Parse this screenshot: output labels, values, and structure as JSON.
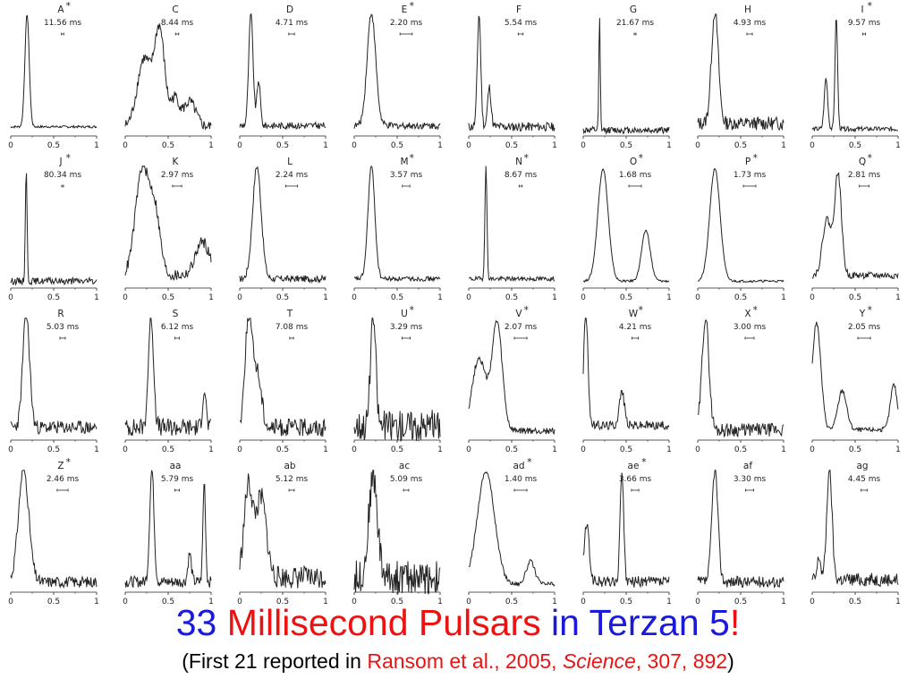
{
  "page": {
    "title_parts": [
      {
        "text": "33 ",
        "color": "#1a1adc"
      },
      {
        "text": "Millisecond Pulsars",
        "color": "#ee1111"
      },
      {
        "text": " in ",
        "color": "#1a1adc"
      },
      {
        "text": "Terzan 5",
        "color": "#1a1adc"
      },
      {
        "text": "!",
        "color": "#ee1111"
      }
    ],
    "subtitle_parts": [
      {
        "text": "(First 21 reported in ",
        "color": "#000000",
        "italic": false
      },
      {
        "text": "Ransom et al., 2005, ",
        "color": "#ee1111",
        "italic": false
      },
      {
        "text": "Science",
        "color": "#ee1111",
        "italic": true
      },
      {
        "text": ", 307, 892",
        "color": "#ee1111",
        "italic": false
      },
      {
        "text": ")",
        "color": "#000000",
        "italic": false
      }
    ]
  },
  "chart_data": {
    "type": "line",
    "xlim": [
      0,
      1
    ],
    "xticks": [
      "0",
      "0.5",
      "1"
    ],
    "line_color": "#222222",
    "panels": [
      {
        "label": "A",
        "star": true,
        "period": "11.56 ms",
        "peaks": [
          [
            0.19,
            1.0,
            0.025
          ]
        ],
        "noise": 0.01,
        "base": 0.05
      },
      {
        "label": "C",
        "star": false,
        "period": "8.44 ms",
        "peaks": [
          [
            0.22,
            0.6,
            0.08
          ],
          [
            0.4,
            0.85,
            0.06
          ],
          [
            0.58,
            0.25,
            0.05
          ],
          [
            0.75,
            0.22,
            0.07
          ]
        ],
        "noise": 0.05,
        "base": 0.05
      },
      {
        "label": "D",
        "star": false,
        "period": "4.71 ms",
        "peaks": [
          [
            0.13,
            1.0,
            0.025
          ],
          [
            0.22,
            0.4,
            0.02
          ]
        ],
        "noise": 0.03,
        "base": 0.06
      },
      {
        "label": "E",
        "star": true,
        "period": "2.20 ms",
        "peaks": [
          [
            0.2,
            1.0,
            0.05
          ]
        ],
        "noise": 0.03,
        "base": 0.06
      },
      {
        "label": "F",
        "star": false,
        "period": "5.54 ms",
        "peaks": [
          [
            0.12,
            1.0,
            0.02
          ],
          [
            0.24,
            0.35,
            0.02
          ]
        ],
        "noise": 0.04,
        "base": 0.05
      },
      {
        "label": "G",
        "star": false,
        "period": "21.67 ms",
        "peaks": [
          [
            0.19,
            1.0,
            0.008
          ]
        ],
        "noise": 0.03,
        "base": 0.02
      },
      {
        "label": "H",
        "star": false,
        "period": "4.93 ms",
        "peaks": [
          [
            0.2,
            1.0,
            0.04
          ]
        ],
        "noise": 0.06,
        "base": 0.08
      },
      {
        "label": "I",
        "star": true,
        "period": "9.57 ms",
        "peaks": [
          [
            0.16,
            0.45,
            0.02
          ],
          [
            0.28,
            1.0,
            0.015
          ]
        ],
        "noise": 0.02,
        "base": 0.03
      },
      {
        "label": "J",
        "star": true,
        "period": "80.34 ms",
        "peaks": [
          [
            0.18,
            1.0,
            0.01
          ]
        ],
        "noise": 0.03,
        "base": 0.03
      },
      {
        "label": "K",
        "star": false,
        "period": "2.97 ms",
        "peaks": [
          [
            0.2,
            0.95,
            0.08
          ],
          [
            0.35,
            0.5,
            0.06
          ],
          [
            0.9,
            0.3,
            0.08
          ]
        ],
        "noise": 0.05,
        "base": 0.08
      },
      {
        "label": "L",
        "star": false,
        "period": "2.24 ms",
        "peaks": [
          [
            0.2,
            1.0,
            0.05
          ]
        ],
        "noise": 0.03,
        "base": 0.05
      },
      {
        "label": "M",
        "star": true,
        "period": "3.57 ms",
        "peaks": [
          [
            0.2,
            1.0,
            0.04
          ]
        ],
        "noise": 0.02,
        "base": 0.05
      },
      {
        "label": "N",
        "star": true,
        "period": "8.67 ms",
        "peaks": [
          [
            0.2,
            1.0,
            0.012
          ]
        ],
        "noise": 0.02,
        "base": 0.05
      },
      {
        "label": "O",
        "star": true,
        "period": "1.68 ms",
        "peaks": [
          [
            0.23,
            1.0,
            0.06
          ],
          [
            0.73,
            0.45,
            0.05
          ]
        ],
        "noise": 0.01,
        "base": 0.03
      },
      {
        "label": "P",
        "star": true,
        "period": "1.73 ms",
        "peaks": [
          [
            0.2,
            1.0,
            0.06
          ]
        ],
        "noise": 0.01,
        "base": 0.03
      },
      {
        "label": "Q",
        "star": true,
        "period": "2.81 ms",
        "peaks": [
          [
            0.17,
            0.5,
            0.05
          ],
          [
            0.3,
            0.9,
            0.04
          ]
        ],
        "noise": 0.03,
        "base": 0.08
      },
      {
        "label": "R",
        "star": false,
        "period": "5.03 ms",
        "peaks": [
          [
            0.18,
            1.0,
            0.04
          ]
        ],
        "noise": 0.06,
        "base": 0.08
      },
      {
        "label": "S",
        "star": false,
        "period": "6.12 ms",
        "peaks": [
          [
            0.3,
            1.0,
            0.03
          ],
          [
            0.92,
            0.35,
            0.02
          ]
        ],
        "noise": 0.08,
        "base": 0.08
      },
      {
        "label": "T",
        "star": false,
        "period": "7.08 ms",
        "peaks": [
          [
            0.1,
            0.95,
            0.04
          ],
          [
            0.2,
            0.5,
            0.05
          ]
        ],
        "noise": 0.08,
        "base": 0.08
      },
      {
        "label": "U",
        "star": true,
        "period": "3.29 ms",
        "peaks": [
          [
            0.22,
            1.0,
            0.03
          ]
        ],
        "noise": 0.14,
        "base": 0.1
      },
      {
        "label": "V",
        "star": true,
        "period": "2.07 ms",
        "peaks": [
          [
            0.12,
            0.65,
            0.08
          ],
          [
            0.33,
            0.95,
            0.06
          ]
        ],
        "noise": 0.03,
        "base": 0.05
      },
      {
        "label": "W",
        "star": true,
        "period": "4.21 ms",
        "peaks": [
          [
            0.03,
            1.0,
            0.025
          ],
          [
            0.45,
            0.3,
            0.03
          ]
        ],
        "noise": 0.04,
        "base": 0.1
      },
      {
        "label": "X",
        "star": true,
        "period": "3.00 ms",
        "peaks": [
          [
            0.09,
            1.0,
            0.04
          ]
        ],
        "noise": 0.06,
        "base": 0.06
      },
      {
        "label": "Y",
        "star": true,
        "period": "2.05 ms",
        "peaks": [
          [
            0.05,
            0.95,
            0.05
          ],
          [
            0.35,
            0.35,
            0.05
          ],
          [
            0.95,
            0.4,
            0.04
          ]
        ],
        "noise": 0.02,
        "base": 0.06
      },
      {
        "label": "Z",
        "star": true,
        "period": "2.46 ms",
        "peaks": [
          [
            0.15,
            1.0,
            0.06
          ]
        ],
        "noise": 0.05,
        "base": 0.06
      },
      {
        "label": "aa",
        "star": false,
        "period": "5.79 ms",
        "peaks": [
          [
            0.31,
            1.0,
            0.025
          ],
          [
            0.92,
            0.9,
            0.015
          ],
          [
            0.75,
            0.25,
            0.02
          ]
        ],
        "noise": 0.05,
        "base": 0.06
      },
      {
        "label": "ab",
        "star": false,
        "period": "5.12 ms",
        "peaks": [
          [
            0.1,
            0.8,
            0.05
          ],
          [
            0.25,
            0.7,
            0.06
          ]
        ],
        "noise": 0.1,
        "base": 0.1
      },
      {
        "label": "ac",
        "star": false,
        "period": "5.09 ms",
        "peaks": [
          [
            0.22,
            0.9,
            0.05
          ]
        ],
        "noise": 0.15,
        "base": 0.1
      },
      {
        "label": "ad",
        "star": true,
        "period": "1.40 ms",
        "peaks": [
          [
            0.2,
            1.0,
            0.1
          ],
          [
            0.72,
            0.2,
            0.05
          ]
        ],
        "noise": 0.02,
        "base": 0.04
      },
      {
        "label": "ae",
        "star": true,
        "period": "3.66 ms",
        "peaks": [
          [
            0.04,
            0.5,
            0.03
          ],
          [
            0.45,
            1.0,
            0.02
          ]
        ],
        "noise": 0.05,
        "base": 0.06
      },
      {
        "label": "af",
        "star": false,
        "period": "3.30 ms",
        "peaks": [
          [
            0.2,
            1.0,
            0.035
          ]
        ],
        "noise": 0.05,
        "base": 0.06
      },
      {
        "label": "ag",
        "star": false,
        "period": "4.45 ms",
        "peaks": [
          [
            0.2,
            1.0,
            0.03
          ],
          [
            0.08,
            0.2,
            0.02
          ]
        ],
        "noise": 0.06,
        "base": 0.08
      }
    ]
  }
}
